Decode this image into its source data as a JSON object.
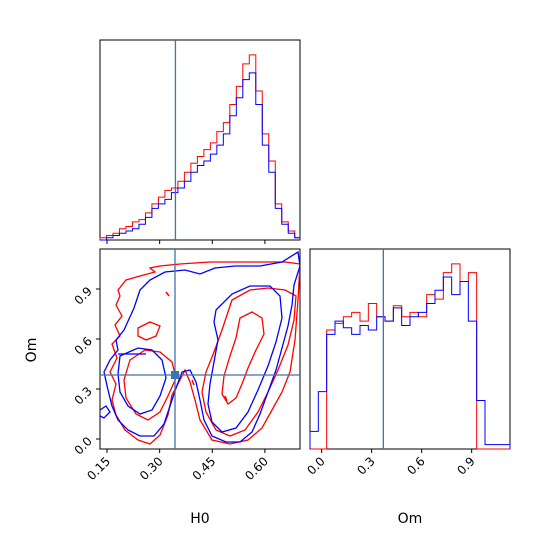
{
  "colors": {
    "red": "#ff0000",
    "blue": "#0000ff",
    "truth": "#3b75af",
    "axis": "#000000"
  },
  "chart_data": [
    {
      "type": "histogram",
      "panel": "H0 marginal",
      "x_range": [
        0.13,
        0.7
      ],
      "bins": [
        0.13,
        0.1485,
        0.167,
        0.1855,
        0.204,
        0.2225,
        0.241,
        0.2595,
        0.278,
        0.2965,
        0.315,
        0.3335,
        0.352,
        0.3705,
        0.389,
        0.4075,
        0.426,
        0.4445,
        0.463,
        0.4815,
        0.5,
        0.5185,
        0.537,
        0.5555,
        0.574,
        0.5925,
        0.611,
        0.6295,
        0.648,
        0.6665,
        0.685,
        0.7
      ],
      "series": [
        {
          "color": "red",
          "values": [
            1,
            2,
            3,
            5,
            6,
            8,
            9,
            12,
            16,
            19,
            22,
            23,
            26,
            30,
            34,
            37,
            40,
            43,
            48,
            52,
            60,
            68,
            78,
            82,
            66,
            47,
            35,
            16,
            8,
            4,
            1
          ]
        },
        {
          "color": "blue",
          "values": [
            0,
            1,
            2,
            3,
            4,
            5,
            7,
            10,
            14,
            16,
            18,
            21,
            23,
            26,
            30,
            33,
            35,
            38,
            42,
            47,
            55,
            63,
            71,
            74,
            60,
            42,
            30,
            14,
            7,
            3,
            1
          ]
        }
      ],
      "truth_x": 0.345,
      "xticks": []
    },
    {
      "type": "contour",
      "panel": "H0 vs Om joint",
      "xlim": [
        0.13,
        0.7
      ],
      "ylim": [
        -0.06,
        1.14
      ],
      "xticks": [
        "0.15",
        "0.30",
        "0.45",
        "0.60"
      ],
      "yticks": [
        "0.0",
        "0.3",
        "0.6",
        "0.9"
      ],
      "xlabel": "H0",
      "ylabel": "Om",
      "truth_point": {
        "x": 0.345,
        "y": 0.37
      }
    },
    {
      "type": "histogram",
      "panel": "Om marginal",
      "x_range": [
        -0.07,
        1.13
      ],
      "bins": [
        -0.07,
        -0.02,
        0.03,
        0.08,
        0.13,
        0.18,
        0.23,
        0.28,
        0.33,
        0.38,
        0.43,
        0.48,
        0.53,
        0.58,
        0.63,
        0.68,
        0.73,
        0.78,
        0.83,
        0.88,
        0.93,
        0.98,
        1.03,
        1.08,
        1.13
      ],
      "series": [
        {
          "color": "red",
          "values": [
            0,
            0,
            54,
            57,
            60,
            62,
            58,
            66,
            60,
            58,
            65,
            60,
            62,
            60,
            70,
            68,
            80,
            84,
            76,
            80,
            0,
            0,
            0,
            0
          ]
        },
        {
          "color": "blue",
          "values": [
            8,
            26,
            52,
            58,
            55,
            52,
            56,
            54,
            60,
            58,
            64,
            56,
            60,
            62,
            66,
            72,
            78,
            70,
            76,
            58,
            22,
            2,
            2,
            2
          ]
        }
      ],
      "truth_x": 0.37,
      "xticks": [
        "0.0",
        "0.3",
        "0.6",
        "0.9"
      ],
      "xlabel": "Om"
    }
  ]
}
